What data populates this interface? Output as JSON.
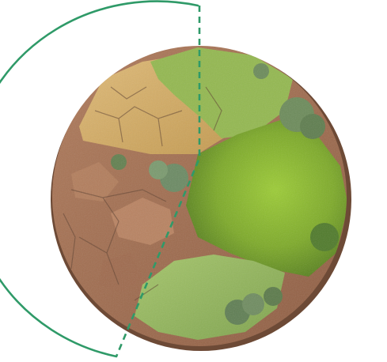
{
  "image": {
    "subject": "",
    "colors": {
      "accent_line": "#2f9a68",
      "dry_soil": "#c9a25b",
      "dry_soil_light": "#ddb873",
      "clay": "#a87455",
      "clay_dark": "#8c5c43",
      "moss": "#86b52d",
      "moss_dark": "#5c8a22",
      "pale_grass": "#93b85b",
      "shrub": "#6c8b5a",
      "soil_edge": "#6d4a36"
    }
  }
}
